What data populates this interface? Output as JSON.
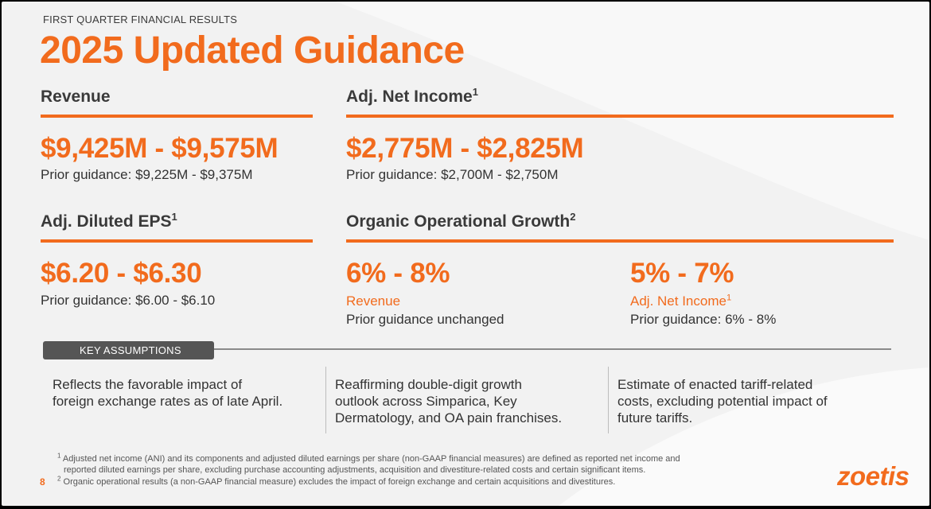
{
  "header": {
    "eyebrow": "FIRST QUARTER  FINANCIAL RESULTS",
    "title": "2025 Updated Guidance"
  },
  "revenue": {
    "heading": "Revenue",
    "value": "$9,425M - $9,575M",
    "prior": "Prior guidance: $9,225M - $9,375M"
  },
  "net_income": {
    "heading": "Adj. Net Income",
    "heading_sup": "1",
    "value": "$2,775M - $2,825M",
    "prior": "Prior guidance: $2,700M - $2,750M"
  },
  "eps": {
    "heading": "Adj. Diluted EPS",
    "heading_sup": "1",
    "value": "$6.20 - $6.30",
    "prior": "Prior guidance: $6.00 - $6.10"
  },
  "organic": {
    "heading": "Organic Operational Growth",
    "heading_sup": "2",
    "revenue": {
      "value": "6% - 8%",
      "label": "Revenue",
      "prior": "Prior guidance unchanged"
    },
    "ani": {
      "value": "5% - 7%",
      "label": "Adj. Net Income",
      "label_sup": "1",
      "prior": "Prior guidance: 6% - 8%"
    }
  },
  "key_assumptions": {
    "label": "KEY ASSUMPTIONS",
    "items": [
      "Reflects the favorable impact of\nforeign exchange rates as of late April.",
      "Reaffirming double-digit growth\noutlook across Simparica, Key\nDermatology, and OA pain franchises.",
      "Estimate of enacted tariff-related\ncosts, excluding potential impact of\nfuture tariffs."
    ]
  },
  "footnotes": {
    "fn1_mark": "1",
    "fn1_line1": "Adjusted net income (ANI) and its components and adjusted diluted earnings per share (non-GAAP financial measures) are defined as reported net income and",
    "fn1_line2": "reported diluted earnings per share, excluding purchase accounting adjustments, acquisition and divestiture-related costs and certain significant items.",
    "fn2_mark": "2",
    "fn2_line": "Organic operational results (a non-GAAP financial measure) excludes the impact of foreign exchange and certain acquisitions and divestitures."
  },
  "page_number": "8",
  "logo_text": "zoetis",
  "colors": {
    "accent": "#f26b1d",
    "text": "#333333",
    "background": "#f2f2f2"
  }
}
